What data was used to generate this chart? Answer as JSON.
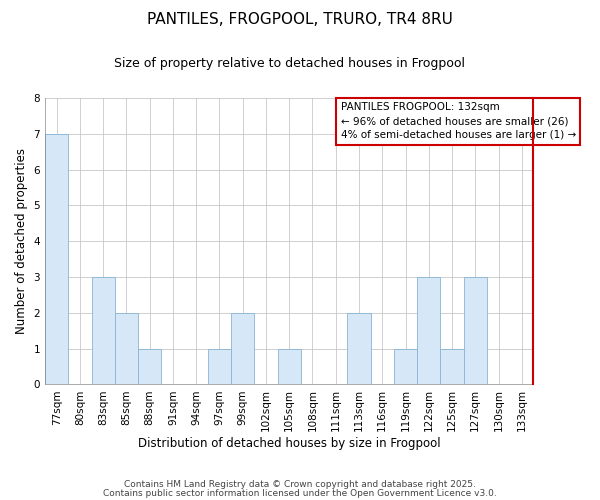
{
  "title": "PANTILES, FROGPOOL, TRURO, TR4 8RU",
  "subtitle": "Size of property relative to detached houses in Frogpool",
  "xlabel": "Distribution of detached houses by size in Frogpool",
  "ylabel": "Number of detached properties",
  "categories": [
    "77sqm",
    "80sqm",
    "83sqm",
    "85sqm",
    "88sqm",
    "91sqm",
    "94sqm",
    "97sqm",
    "99sqm",
    "102sqm",
    "105sqm",
    "108sqm",
    "111sqm",
    "113sqm",
    "116sqm",
    "119sqm",
    "122sqm",
    "125sqm",
    "127sqm",
    "130sqm",
    "133sqm"
  ],
  "values": [
    7,
    0,
    3,
    2,
    1,
    0,
    0,
    1,
    2,
    0,
    1,
    0,
    0,
    2,
    0,
    1,
    3,
    1,
    3,
    0,
    0
  ],
  "bar_color": "#d6e8f7",
  "bar_edgecolor": "#8ab4d4",
  "grid_color": "#c8c8c8",
  "ylim": [
    0,
    8
  ],
  "yticks": [
    0,
    1,
    2,
    3,
    4,
    5,
    6,
    7,
    8
  ],
  "vline_color": "#cc0000",
  "legend_title": "PANTILES FROGPOOL: 132sqm",
  "legend_line1": "← 96% of detached houses are smaller (26)",
  "legend_line2": "4% of semi-detached houses are larger (1) →",
  "footer1": "Contains HM Land Registry data © Crown copyright and database right 2025.",
  "footer2": "Contains public sector information licensed under the Open Government Licence v3.0.",
  "background_color": "#ffffff",
  "title_fontsize": 11,
  "subtitle_fontsize": 9,
  "axis_label_fontsize": 8.5,
  "tick_fontsize": 7.5,
  "legend_fontsize": 7.5,
  "footer_fontsize": 6.5
}
